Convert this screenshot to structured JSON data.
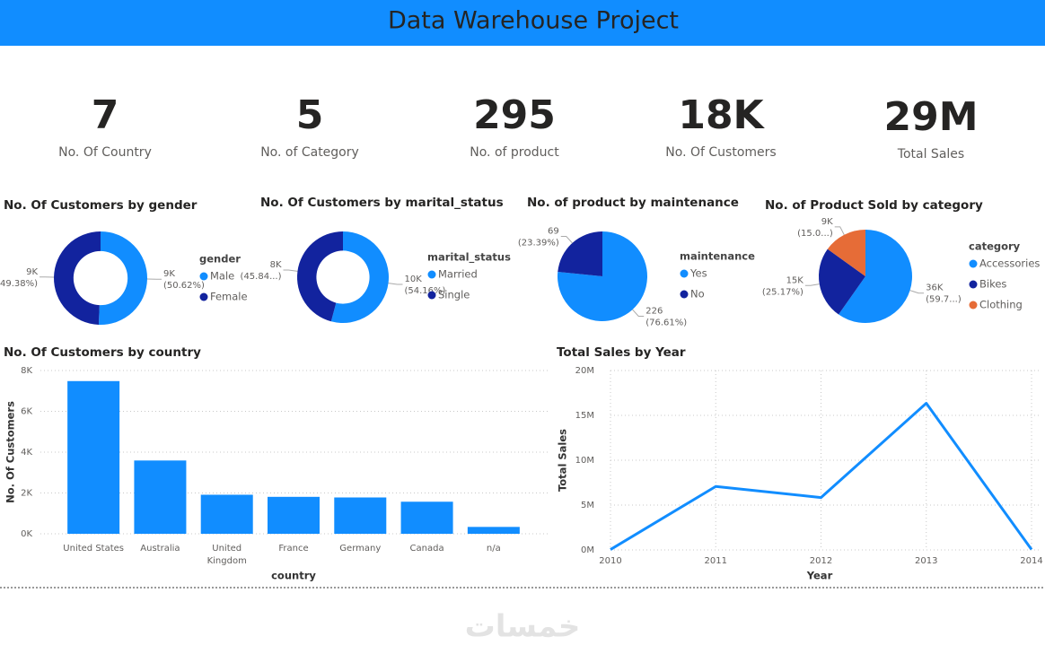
{
  "header": {
    "title": "Data Warehouse Project"
  },
  "kpis": [
    {
      "value": "7",
      "label": "No. Of Country"
    },
    {
      "value": "5",
      "label": "No. of Category"
    },
    {
      "value": "295",
      "label": "No. of product"
    },
    {
      "value": "18K",
      "label": "No. Of Customers"
    },
    {
      "value": "29M",
      "label": "Total Sales"
    }
  ],
  "chart_data": [
    {
      "type": "donut",
      "title": "No. Of Customers by gender",
      "legend_title": "gender",
      "categories": [
        "Male",
        "Female"
      ],
      "colors": [
        "#118dff",
        "#12239e"
      ],
      "values": [
        9357,
        9127
      ],
      "value_labels": [
        "9K",
        "9K"
      ],
      "percent_labels": [
        "(50.62%)",
        "(49.38%)"
      ]
    },
    {
      "type": "donut",
      "title": "No. Of Customers by marital_status",
      "legend_title": "marital_status",
      "categories": [
        "Married",
        "Single"
      ],
      "colors": [
        "#118dff",
        "#12239e"
      ],
      "values": [
        10011,
        8473
      ],
      "value_labels": [
        "10K",
        "8K"
      ],
      "percent_labels": [
        "(54.16%)",
        "(45.84...)"
      ]
    },
    {
      "type": "pie",
      "title": "No. of product by maintenance",
      "legend_title": "maintenance",
      "categories": [
        "Yes",
        "No"
      ],
      "colors": [
        "#118dff",
        "#12239e"
      ],
      "values": [
        226,
        69
      ],
      "value_labels": [
        "226",
        "69"
      ],
      "percent_labels": [
        "(76.61%)",
        "(23.39%)"
      ]
    },
    {
      "type": "pie",
      "title": "No. of Product Sold by category",
      "legend_title": "category",
      "categories": [
        "Accessories",
        "Bikes",
        "Clothing"
      ],
      "colors": [
        "#118dff",
        "#12239e",
        "#e66c37"
      ],
      "values": [
        36092,
        15205,
        9101
      ],
      "value_labels": [
        "36K",
        "15K",
        "9K"
      ],
      "percent_labels": [
        "(59.7...)",
        "(25.17%)",
        "(15.0...)"
      ]
    },
    {
      "type": "bar",
      "title": "No. Of Customers by country",
      "x_label": "country",
      "y_label": "No. Of Customers",
      "categories": [
        "United States",
        "Australia",
        "United Kingdom",
        "France",
        "Germany",
        "Canada",
        "n/a"
      ],
      "values": [
        7482,
        3591,
        1913,
        1810,
        1780,
        1571,
        337
      ],
      "color": "#118dff",
      "ylim": [
        0,
        8000
      ],
      "yticks": [
        {
          "value": 0,
          "label": "0K"
        },
        {
          "value": 2000,
          "label": "2K"
        },
        {
          "value": 4000,
          "label": "4K"
        },
        {
          "value": 6000,
          "label": "6K"
        },
        {
          "value": 8000,
          "label": "8K"
        }
      ],
      "grid": true
    },
    {
      "type": "line",
      "title": "Total Sales by Year",
      "x_label": "Year",
      "y_label": "Total Sales",
      "x": [
        2010,
        2011,
        2012,
        2013,
        2014
      ],
      "values": [
        43421,
        7075088,
        5842231,
        16344878,
        45642
      ],
      "color": "#118dff",
      "xlim": [
        2010,
        2014
      ],
      "xticks": [
        2010,
        2011,
        2012,
        2013,
        2014
      ],
      "ylim": [
        0,
        20000000
      ],
      "yticks": [
        {
          "value": 0,
          "label": "0M"
        },
        {
          "value": 5000000,
          "label": "5M"
        },
        {
          "value": 10000000,
          "label": "10M"
        },
        {
          "value": 15000000,
          "label": "15M"
        },
        {
          "value": 20000000,
          "label": "20M"
        }
      ],
      "grid": true
    }
  ],
  "watermark": "خمسات"
}
